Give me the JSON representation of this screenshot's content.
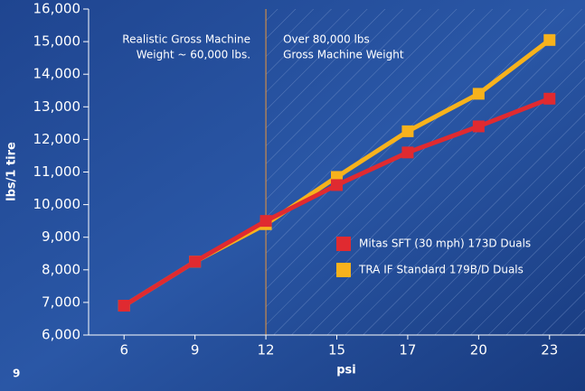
{
  "page_number": "9",
  "chart_data": {
    "type": "line",
    "x_label": "psi",
    "y_label": "lbs/1 tire",
    "categories": [
      "6",
      "9",
      "12",
      "15",
      "17",
      "20",
      "23"
    ],
    "series": [
      {
        "name": "TRA IF Standard 179B/D Duals",
        "color": "#f7b21c",
        "values": [
          6900,
          8250,
          9400,
          10850,
          12250,
          13400,
          15050
        ]
      },
      {
        "name": "Mitas SFT (30 mph) 173D Duals",
        "color": "#e02a30",
        "values": [
          6900,
          8250,
          9500,
          10600,
          11600,
          12400,
          13250
        ]
      }
    ],
    "ylim": [
      6000,
      16000
    ],
    "yticks": [
      {
        "value": 6000,
        "label": "6,000"
      },
      {
        "value": 7000,
        "label": "7,000"
      },
      {
        "value": 8000,
        "label": "8,000"
      },
      {
        "value": 9000,
        "label": "9,000"
      },
      {
        "value": 10000,
        "label": "10,000"
      },
      {
        "value": 11000,
        "label": "11,000"
      },
      {
        "value": 12000,
        "label": "12,000"
      },
      {
        "value": 13000,
        "label": "13,000"
      },
      {
        "value": 14000,
        "label": "14,000"
      },
      {
        "value": 15000,
        "label": "15,000"
      },
      {
        "value": 16000,
        "label": "16,000"
      }
    ],
    "annotations": [
      {
        "lines": [
          "Realistic Gross Machine",
          "Weight ~ 60,000 lbs."
        ]
      },
      {
        "lines": [
          "Over 80,000 lbs",
          "Gross Machine Weight"
        ]
      }
    ],
    "legend": "center right"
  }
}
